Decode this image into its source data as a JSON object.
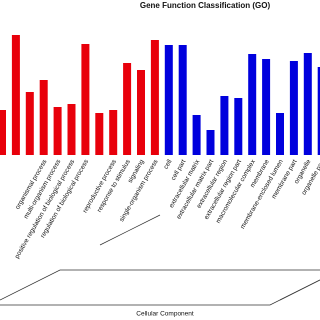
{
  "chart_data": {
    "type": "bar",
    "title": "Gene Function Classification (GO)",
    "categories": [
      null,
      null,
      null,
      "organismal process",
      "multi-organism process",
      "positive regulation of biological process",
      "regulation of biological process",
      null,
      "reproductive process",
      "response to stimulus",
      "signaling",
      "single-organism process",
      "cell",
      "cell part",
      "extracellular matrix",
      "extracellular matrix part",
      "extracellular region",
      "extracellular region part",
      "macromolecular complex",
      "membrane",
      "membrane-enclosed lumen",
      "membrane part",
      "organelle",
      "organelle part"
    ],
    "values": [
      45,
      120,
      63,
      75,
      48,
      51,
      111,
      42,
      45,
      92,
      85,
      115,
      110,
      110,
      40,
      25,
      59,
      57,
      101,
      96,
      42,
      94,
      102,
      88
    ],
    "colors": [
      "#e8000b",
      "#e8000b",
      "#e8000b",
      "#e8000b",
      "#e8000b",
      "#e8000b",
      "#e8000b",
      "#e8000b",
      "#e8000b",
      "#e8000b",
      "#e8000b",
      "#e8000b",
      "#0000dd",
      "#0000dd",
      "#0000dd",
      "#0000dd",
      "#0000dd",
      "#0000dd",
      "#0000dd",
      "#0000dd",
      "#0000dd",
      "#0000dd",
      "#0000dd",
      "#0000dd"
    ],
    "ylim": [
      0,
      125
    ],
    "group_labels": [
      "Cellular Component"
    ]
  }
}
